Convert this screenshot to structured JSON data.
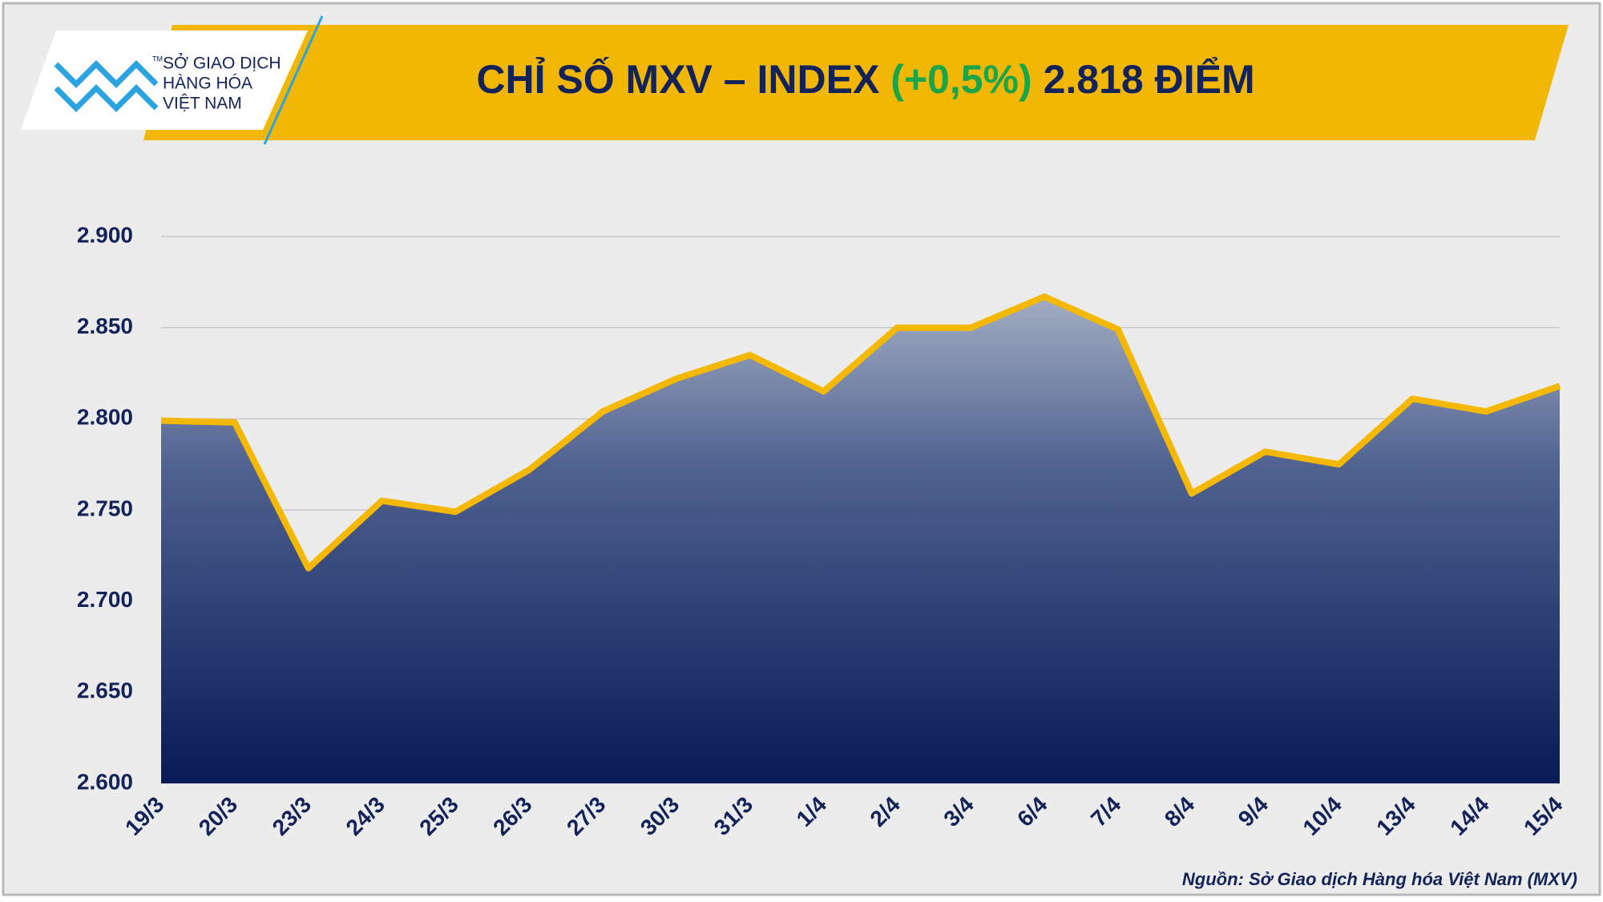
{
  "logo": {
    "lines": [
      "SỞ GIAO DỊCH",
      "HÀNG HÓA",
      "VIỆT NAM"
    ],
    "mark": "TM"
  },
  "source": "Nguồn: Sở Giao dịch Hàng hóa Việt Nam (MXV)",
  "chart_data": {
    "type": "area",
    "title_parts": [
      {
        "text": "CHỈ SỐ MXV – INDEX",
        "color": "#13235a"
      },
      {
        "text": "(+0,5%)",
        "color": "#1aa54a"
      },
      {
        "text": "2.818 ĐIỂM",
        "color": "#13235a"
      }
    ],
    "categories": [
      "19/3",
      "20/3",
      "23/3",
      "24/3",
      "25/3",
      "26/3",
      "27/3",
      "30/3",
      "31/3",
      "1/4",
      "2/4",
      "3/4",
      "6/4",
      "7/4",
      "8/4",
      "9/4",
      "10/4",
      "13/4",
      "14/4",
      "15/4"
    ],
    "series": [
      {
        "name": "MXV-Index",
        "color": "#f5b800",
        "values": [
          2799,
          2798,
          2718,
          2755,
          2749,
          2772,
          2804,
          2822,
          2835,
          2815,
          2850,
          2850,
          2867,
          2849,
          2759,
          2782,
          2775,
          2811,
          2804,
          2818
        ]
      }
    ],
    "ylim": [
      2600,
      2900
    ],
    "yticks": [
      {
        "value": 2600,
        "label": "2.600"
      },
      {
        "value": 2650,
        "label": "2.650"
      },
      {
        "value": 2700,
        "label": "2.700"
      },
      {
        "value": 2750,
        "label": "2.750"
      },
      {
        "value": 2800,
        "label": "2.800"
      },
      {
        "value": 2850,
        "label": "2.850"
      },
      {
        "value": 2900,
        "label": "2.900"
      }
    ],
    "grid": true
  }
}
